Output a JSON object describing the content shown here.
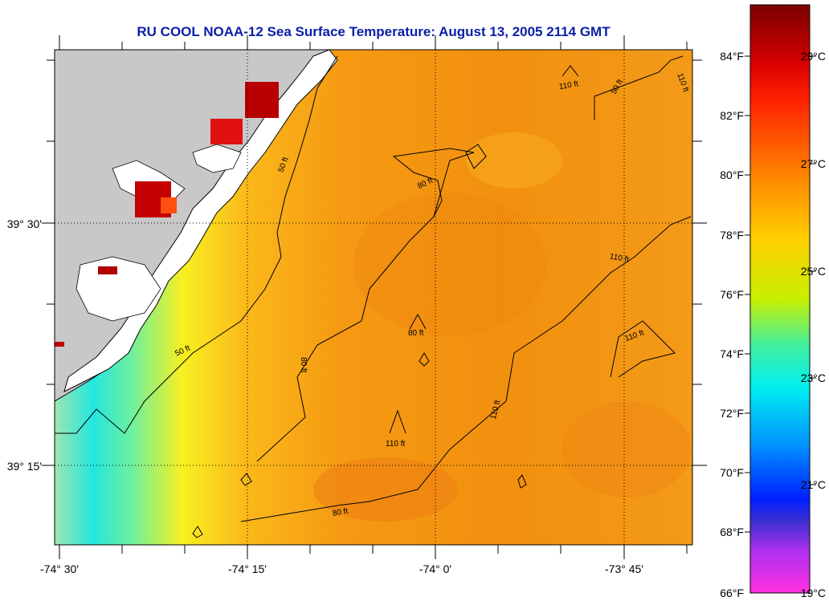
{
  "title": "RU COOL  NOAA-12  Sea Surface Temperature:  August 13, 2005 2114 GMT",
  "map": {
    "x_ticks": [
      "-74° 30'",
      "-74° 15'",
      "-74° 0'",
      "-73° 45'"
    ],
    "y_ticks": [
      "39° 30'",
      "39° 15'"
    ],
    "contour_labels": {
      "depth_50_a": "50 ft",
      "depth_50_b": "50 ft",
      "depth_50_c": "50 ft",
      "depth_80_a": "80 ft",
      "depth_80_b": "80 ft",
      "depth_80_c": "80 ft",
      "depth_80_d": "80 ft",
      "depth_110_a": "110 ft",
      "depth_110_b": "110 ft",
      "depth_110_c": "110 ft",
      "depth_110_d": "110 ft",
      "depth_110_e": "110 ft",
      "depth_110_f": "110 ft"
    },
    "land_color": "#c8c8c8"
  },
  "colorbar": {
    "fahrenheit": [
      "84°F",
      "82°F",
      "80°F",
      "78°F",
      "76°F",
      "74°F",
      "72°F",
      "70°F",
      "68°F",
      "66°F"
    ],
    "celsius": [
      "29°C",
      "27°C",
      "25°C",
      "23°C",
      "21°C",
      "19°C"
    ]
  },
  "colors": {
    "title": "#0b1fa8",
    "sst_ocean": "#f59a12",
    "sst_warm": "#ef7d10"
  }
}
